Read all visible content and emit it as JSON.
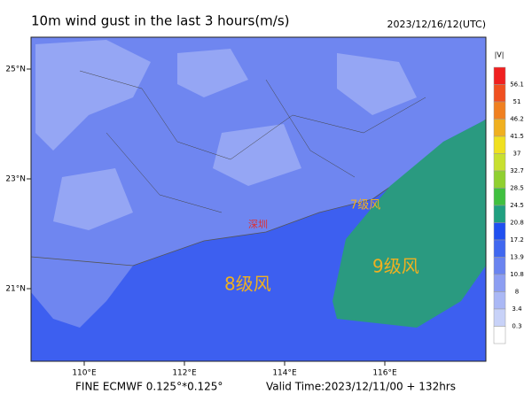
{
  "header": {
    "title": "10m wind gust in the last 3 hours(m/s)",
    "time": "2023/12/16/12(UTC)"
  },
  "map": {
    "lon_ticks": [
      {
        "value": 110,
        "label": "110°E"
      },
      {
        "value": 112,
        "label": "112°E"
      },
      {
        "value": 114,
        "label": "114°E"
      },
      {
        "value": 116,
        "label": "116°E"
      }
    ],
    "lat_ticks": [
      {
        "value": 25,
        "label": "25°N"
      },
      {
        "value": 23,
        "label": "23°N"
      },
      {
        "value": 21,
        "label": "21°N"
      }
    ],
    "annotations": [
      "7级风",
      "8级风",
      "9级风"
    ],
    "city": "深圳"
  },
  "colorbar": {
    "title": "|V|",
    "levels": [
      56.1,
      51,
      46.2,
      41.5,
      37,
      32.7,
      28.5,
      24.5,
      20.8,
      17.2,
      13.9,
      10.8,
      8,
      3.4,
      0.3
    ],
    "colors": [
      "#f02020",
      "#f05020",
      "#f08020",
      "#f0b020",
      "#f0e020",
      "#c8e030",
      "#90d030",
      "#40c040",
      "#20a080",
      "#2050f0",
      "#4068f0",
      "#6a84f0",
      "#8c9ef2",
      "#aab8f5",
      "#c8d2f8",
      "#ffffff"
    ]
  },
  "footer": {
    "left": "FINE ECMWF 0.125°*0.125°",
    "right": "Valid Time:2023/12/11/00 + 132hrs"
  }
}
